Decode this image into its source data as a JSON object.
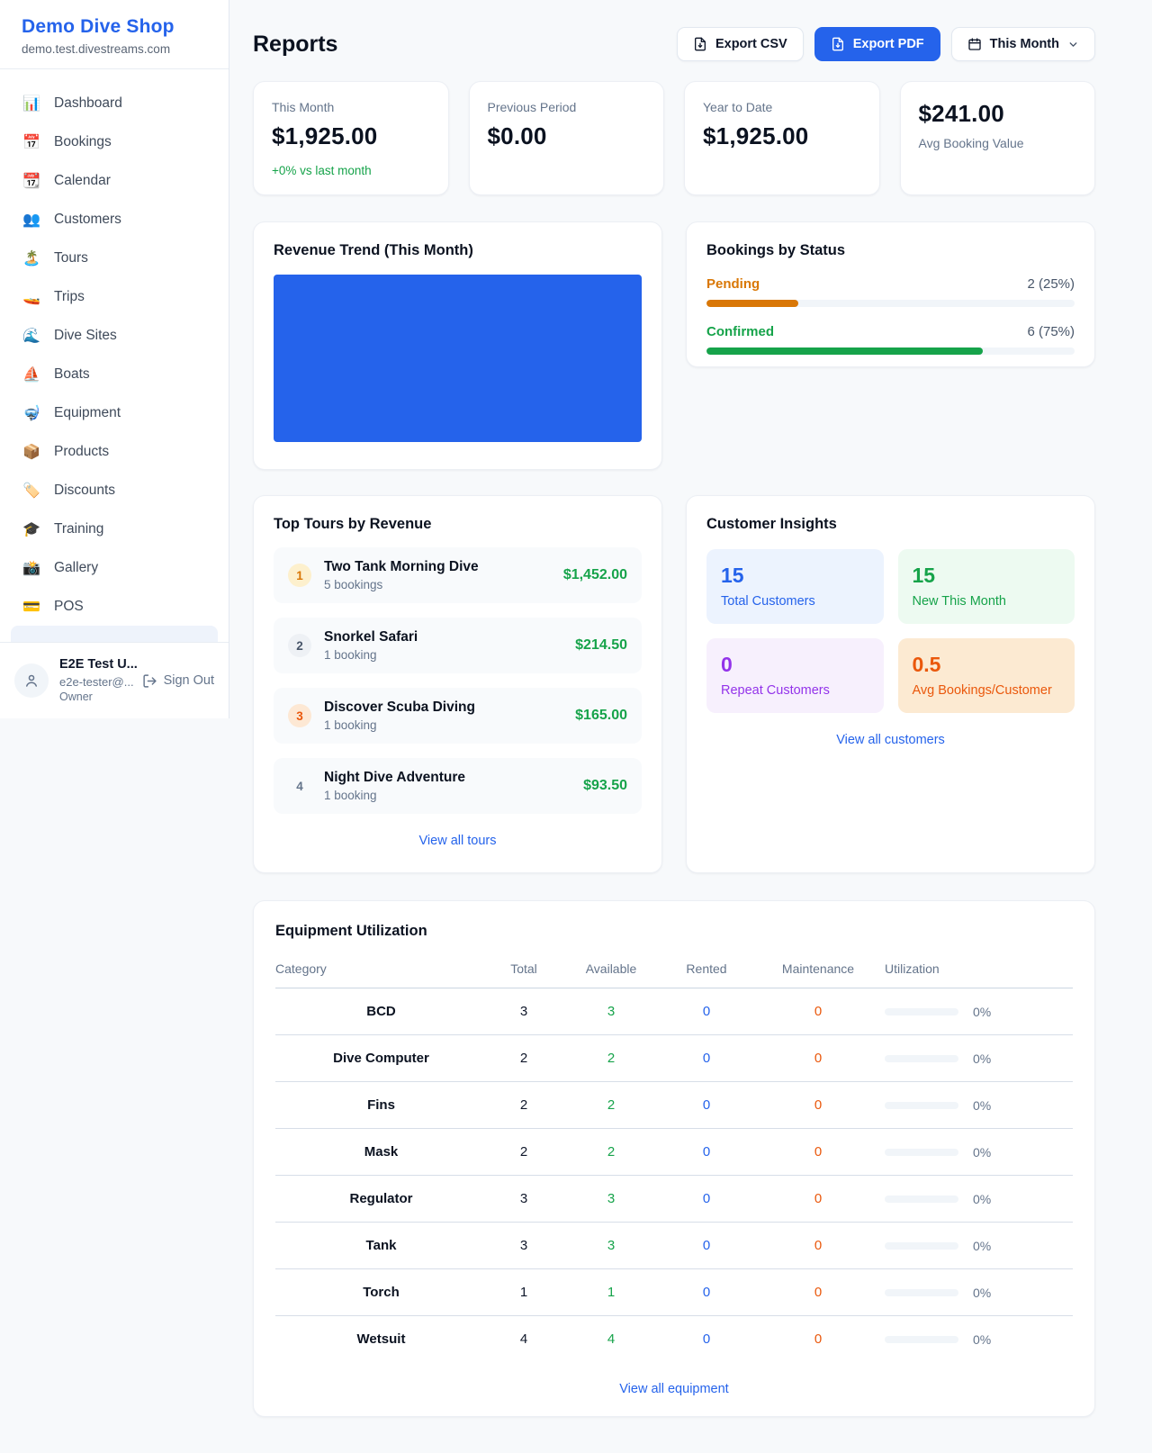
{
  "brand": {
    "name": "Demo Dive Shop",
    "domain": "demo.test.divestreams.com"
  },
  "sidebar": {
    "items": [
      {
        "icon": "📊",
        "label": "Dashboard"
      },
      {
        "icon": "📅",
        "label": "Bookings"
      },
      {
        "icon": "📆",
        "label": "Calendar"
      },
      {
        "icon": "👥",
        "label": "Customers"
      },
      {
        "icon": "🏝️",
        "label": "Tours"
      },
      {
        "icon": "🚤",
        "label": "Trips"
      },
      {
        "icon": "🌊",
        "label": "Dive Sites"
      },
      {
        "icon": "⛵",
        "label": "Boats"
      },
      {
        "icon": "🤿",
        "label": "Equipment"
      },
      {
        "icon": "📦",
        "label": "Products"
      },
      {
        "icon": "🏷️",
        "label": "Discounts"
      },
      {
        "icon": "🎓",
        "label": "Training"
      },
      {
        "icon": "📸",
        "label": "Gallery"
      },
      {
        "icon": "💳",
        "label": "POS"
      }
    ]
  },
  "user": {
    "name": "E2E Test U...",
    "email": "e2e-tester@...",
    "role": "Owner",
    "sign_out_label": "Sign Out"
  },
  "header": {
    "title": "Reports",
    "export_csv_label": "Export CSV",
    "export_pdf_label": "Export PDF",
    "period_label": "This Month"
  },
  "stats": [
    {
      "label": "This Month",
      "value": "$1,925.00",
      "delta": "+0% vs last month",
      "value_first": false
    },
    {
      "label": "Previous Period",
      "value": "$0.00",
      "delta": "",
      "value_first": false
    },
    {
      "label": "Year to Date",
      "value": "$1,925.00",
      "delta": "",
      "value_first": false
    },
    {
      "label": "Avg Booking Value",
      "value": "$241.00",
      "delta": "",
      "value_first": true
    }
  ],
  "revenue_trend": {
    "title": "Revenue Trend (This Month)",
    "bar_color": "#2563eb"
  },
  "bookings_by_status": {
    "title": "Bookings by Status",
    "rows": [
      {
        "label": "Pending",
        "value": "2 (25%)",
        "percent": 25,
        "color": "#d97706"
      },
      {
        "label": "Confirmed",
        "value": "6 (75%)",
        "percent": 75,
        "color": "#16a34a"
      }
    ]
  },
  "top_tours": {
    "title": "Top Tours by Revenue",
    "view_all_label": "View all tours",
    "items": [
      {
        "rank": "1",
        "name": "Two Tank Morning Dive",
        "bookings": "5 bookings",
        "revenue": "$1,452.00",
        "badge": "gold"
      },
      {
        "rank": "2",
        "name": "Snorkel Safari",
        "bookings": "1 booking",
        "revenue": "$214.50",
        "badge": "silver"
      },
      {
        "rank": "3",
        "name": "Discover Scuba Diving",
        "bookings": "1 booking",
        "revenue": "$165.00",
        "badge": "bronze"
      },
      {
        "rank": "4",
        "name": "Night Dive Adventure",
        "bookings": "1 booking",
        "revenue": "$93.50",
        "badge": "plain"
      }
    ]
  },
  "customer_insights": {
    "title": "Customer Insights",
    "view_all_label": "View all customers",
    "tiles": [
      {
        "value": "15",
        "label": "Total Customers",
        "theme": "blue"
      },
      {
        "value": "15",
        "label": "New This Month",
        "theme": "green"
      },
      {
        "value": "0",
        "label": "Repeat Customers",
        "theme": "purple"
      },
      {
        "value": "0.5",
        "label": "Avg Bookings/Customer",
        "theme": "orange"
      }
    ]
  },
  "equipment": {
    "title": "Equipment Utilization",
    "view_all_label": "View all equipment",
    "columns": [
      "Category",
      "Total",
      "Available",
      "Rented",
      "Maintenance",
      "Utilization"
    ],
    "rows": [
      {
        "category": "BCD",
        "total": "3",
        "available": "3",
        "rented": "0",
        "maintenance": "0",
        "utilization": "0%",
        "utilization_percent": 0
      },
      {
        "category": "Dive Computer",
        "total": "2",
        "available": "2",
        "rented": "0",
        "maintenance": "0",
        "utilization": "0%",
        "utilization_percent": 0
      },
      {
        "category": "Fins",
        "total": "2",
        "available": "2",
        "rented": "0",
        "maintenance": "0",
        "utilization": "0%",
        "utilization_percent": 0
      },
      {
        "category": "Mask",
        "total": "2",
        "available": "2",
        "rented": "0",
        "maintenance": "0",
        "utilization": "0%",
        "utilization_percent": 0
      },
      {
        "category": "Regulator",
        "total": "3",
        "available": "3",
        "rented": "0",
        "maintenance": "0",
        "utilization": "0%",
        "utilization_percent": 0
      },
      {
        "category": "Tank",
        "total": "3",
        "available": "3",
        "rented": "0",
        "maintenance": "0",
        "utilization": "0%",
        "utilization_percent": 0
      },
      {
        "category": "Torch",
        "total": "1",
        "available": "1",
        "rented": "0",
        "maintenance": "0",
        "utilization": "0%",
        "utilization_percent": 0
      },
      {
        "category": "Wetsuit",
        "total": "4",
        "available": "4",
        "rented": "0",
        "maintenance": "0",
        "utilization": "0%",
        "utilization_percent": 0
      }
    ]
  },
  "colors": {
    "primary": "#2563eb",
    "green": "#16a34a",
    "amber": "#d97706",
    "deep_orange": "#ea580c",
    "purple": "#9333ea"
  }
}
